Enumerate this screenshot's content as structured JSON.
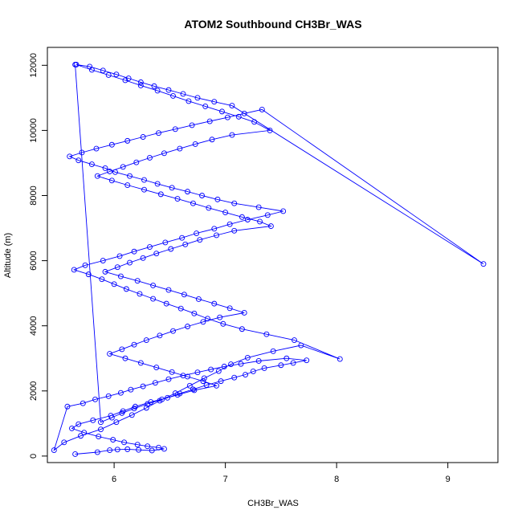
{
  "chart_data": {
    "type": "line",
    "title": "ATOM2 Southbound CH3Br_WAS",
    "xlabel": "CH3Br_WAS",
    "ylabel": "Altitude (m)",
    "xlim": [
      5.4,
      9.45
    ],
    "ylim": [
      -200,
      12550
    ],
    "xticks": [
      "6",
      "7",
      "8",
      "9"
    ],
    "yticks": [
      "0",
      "2000",
      "4000",
      "6000",
      "8000",
      "10000",
      "12000"
    ],
    "grid": false,
    "legend": "none",
    "series_color": "#0000ff",
    "marker": "open-circle",
    "series": [
      {
        "x": [
          5.65,
          5.85,
          5.96,
          6.03,
          6.12,
          6.22,
          6.34,
          6.45,
          6.4,
          6.3,
          6.21,
          6.09,
          5.99,
          5.86,
          5.73,
          5.62,
          5.68,
          5.81,
          5.97,
          6.08,
          6.19,
          6.33,
          6.48,
          6.59,
          6.71,
          6.83,
          6.96,
          7.08,
          7.18,
          7.25,
          7.35,
          7.5,
          7.61,
          7.73,
          7.55,
          7.3,
          7.14,
          6.99,
          6.87,
          6.75,
          6.62,
          6.49,
          6.37,
          6.26,
          6.15,
          6.06,
          5.95,
          5.83,
          5.72,
          5.58,
          5.46,
          5.55,
          5.7,
          5.88,
          6.02,
          6.16,
          6.29,
          6.41,
          6.55,
          6.68,
          6.81,
          6.94,
          7.05,
          7.2,
          7.43,
          7.68,
          8.03,
          7.62,
          7.37,
          7.15,
          6.98,
          6.84,
          6.72,
          6.6,
          6.47,
          6.35,
          6.23,
          6.11,
          6.0,
          5.89,
          5.77,
          5.64,
          5.74,
          5.9,
          6.05,
          6.18,
          6.32,
          6.46,
          6.61,
          6.74,
          6.9,
          7.04,
          7.2,
          7.38,
          7.52,
          7.3,
          7.08,
          6.93,
          6.79,
          6.66,
          6.52,
          6.39,
          6.27,
          6.14,
          6.01,
          5.92,
          5.8,
          5.68,
          5.6,
          5.71,
          5.84,
          5.98,
          6.12,
          6.26,
          6.4,
          6.55,
          6.7,
          6.86,
          7.02,
          7.17,
          7.33,
          9.32,
          7.06,
          6.9,
          6.75,
          6.62,
          6.49,
          6.36,
          6.24,
          6.13,
          6.02,
          5.9,
          5.78,
          5.66,
          5.8,
          5.95,
          6.1,
          6.24,
          6.39,
          6.53,
          6.67,
          6.82,
          6.97,
          7.12,
          7.26,
          7.4,
          7.06,
          6.88,
          6.73,
          6.59,
          6.45,
          6.32,
          6.2,
          6.08,
          5.96,
          5.85,
          5.98,
          6.12,
          6.27,
          6.42,
          6.57,
          6.71,
          6.85,
          7.0,
          7.15,
          7.31,
          7.41,
          7.08,
          6.92,
          6.77,
          6.64,
          6.51,
          6.38,
          6.26,
          6.14,
          6.03,
          5.92,
          6.06,
          6.21,
          6.35,
          6.49,
          6.63,
          6.76,
          6.9,
          7.04,
          7.17,
          6.95,
          6.8,
          6.66,
          6.53,
          6.41,
          6.29,
          6.18,
          6.07,
          5.96,
          6.1,
          6.24,
          6.38,
          6.52,
          6.66,
          6.8,
          6.92,
          6.72,
          6.57,
          6.43,
          6.3,
          6.18,
          6.07,
          5.98,
          5.88,
          5.65
        ],
        "y": [
          60,
          120,
          180,
          200,
          210,
          190,
          170,
          220,
          260,
          300,
          350,
          420,
          500,
          600,
          720,
          850,
          980,
          1100,
          1240,
          1380,
          1520,
          1660,
          1790,
          1920,
          2050,
          2180,
          2300,
          2410,
          2500,
          2600,
          2700,
          2790,
          2860,
          2940,
          3000,
          2920,
          2830,
          2750,
          2660,
          2570,
          2470,
          2360,
          2250,
          2140,
          2040,
          1940,
          1840,
          1740,
          1620,
          1520,
          180,
          420,
          620,
          820,
          1040,
          1260,
          1480,
          1700,
          1930,
          2160,
          2390,
          2610,
          2820,
          3020,
          3220,
          3400,
          2980,
          3560,
          3740,
          3900,
          4060,
          4220,
          4380,
          4530,
          4680,
          4830,
          4980,
          5130,
          5280,
          5430,
          5580,
          5720,
          5860,
          6000,
          6140,
          6280,
          6420,
          6560,
          6700,
          6840,
          6980,
          7120,
          7260,
          7400,
          7520,
          7640,
          7760,
          7880,
          8000,
          8120,
          8240,
          8360,
          8480,
          8600,
          8720,
          8840,
          8960,
          9080,
          9200,
          9320,
          9440,
          9560,
          9680,
          9800,
          9920,
          10040,
          10160,
          10280,
          10400,
          10520,
          10640,
          5900,
          10760,
          10880,
          11000,
          11120,
          11240,
          11360,
          11480,
          11600,
          11720,
          11840,
          11960,
          12020,
          11860,
          11700,
          11540,
          11380,
          11220,
          11060,
          10900,
          10740,
          10580,
          10420,
          10260,
          10000,
          9860,
          9720,
          9580,
          9440,
          9300,
          9160,
          9020,
          8880,
          8740,
          8600,
          8460,
          8320,
          8180,
          8040,
          7900,
          7760,
          7620,
          7480,
          7340,
          7200,
          7060,
          6920,
          6780,
          6640,
          6500,
          6360,
          6220,
          6080,
          5940,
          5800,
          5660,
          5520,
          5380,
          5240,
          5100,
          4960,
          4820,
          4680,
          4540,
          4400,
          4260,
          4120,
          3980,
          3840,
          3700,
          3560,
          3420,
          3280,
          3140,
          3000,
          2860,
          2720,
          2580,
          2440,
          2300,
          2160,
          2020,
          1880,
          1740,
          1600,
          1460,
          1320,
          1180,
          1040,
          12020
        ]
      }
    ]
  }
}
